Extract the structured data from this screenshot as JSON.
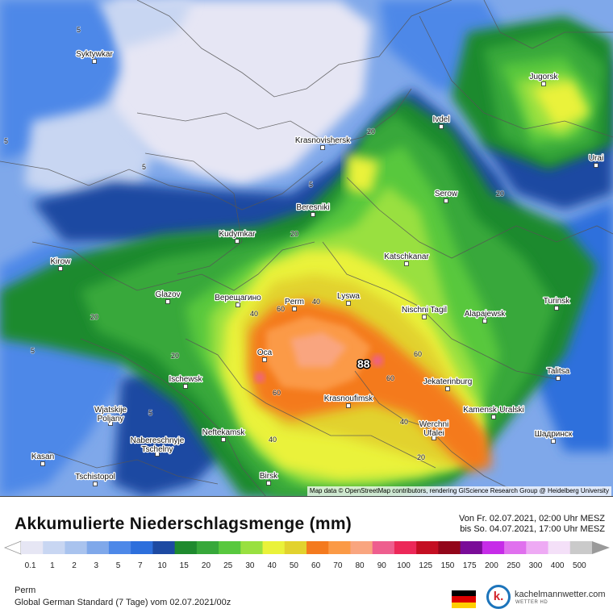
{
  "map": {
    "attribution": "Map data © OpenStreetMap contributors, rendering GIScience Research Group @ Heidelberg University",
    "max_value": "88",
    "cities": [
      {
        "name": "Syktywkar",
        "lon": 117,
        "lat": 76
      },
      {
        "name": "Jugorsk",
        "lon": 674,
        "lat": 104
      },
      {
        "name": "Ivdel",
        "lon": 547,
        "lat": 157
      },
      {
        "name": "Krasnovishersk",
        "lon": 400,
        "lat": 183
      },
      {
        "name": "Urai",
        "lon": 739,
        "lat": 205
      },
      {
        "name": "Serow",
        "lon": 553,
        "lat": 249
      },
      {
        "name": "Beresniki",
        "lon": 388,
        "lat": 266
      },
      {
        "name": "Kudymkar",
        "lon": 294,
        "lat": 299
      },
      {
        "name": "Katschkanar",
        "lon": 504,
        "lat": 327
      },
      {
        "name": "Kirow",
        "lon": 75,
        "lat": 333
      },
      {
        "name": "Glazov",
        "lon": 208,
        "lat": 374
      },
      {
        "name": "Верещагино",
        "lon": 295,
        "lat": 378
      },
      {
        "name": "Perm",
        "lon": 365,
        "lat": 383
      },
      {
        "name": "Lyswa",
        "lon": 432,
        "lat": 376
      },
      {
        "name": "Turinsk",
        "lon": 690,
        "lat": 382
      },
      {
        "name": "Nischni Tagil",
        "lon": 526,
        "lat": 393
      },
      {
        "name": "Alapajewsk",
        "lon": 601,
        "lat": 398
      },
      {
        "name": "Oca",
        "lon": 328,
        "lat": 446
      },
      {
        "name": "Talitsa",
        "lon": 692,
        "lat": 469
      },
      {
        "name": "Jekaterinburg",
        "lon": 555,
        "lat": 482
      },
      {
        "name": "Ischewsk",
        "lon": 230,
        "lat": 479
      },
      {
        "name": "Krasnoufimsk",
        "lon": 432,
        "lat": 503
      },
      {
        "name": "Kamensk-Uralski",
        "lon": 612,
        "lat": 517
      },
      {
        "name": "Wjatskije Poljany",
        "lon": 137,
        "lat": 525
      },
      {
        "name": "Neftekamsk",
        "lon": 277,
        "lat": 545
      },
      {
        "name": "Werchni Ufalei",
        "lon": 538,
        "lat": 543
      },
      {
        "name": "Шадринск",
        "lon": 686,
        "lat": 547
      },
      {
        "name": "Nabereschnyje Tschelny",
        "lon": 195,
        "lat": 563
      },
      {
        "name": "Kasan",
        "lon": 53,
        "lat": 575
      },
      {
        "name": "Birsk",
        "lon": 333,
        "lat": 599
      },
      {
        "name": "Tschistopol",
        "lon": 118,
        "lat": 600
      }
    ]
  },
  "legend": {
    "title": "Akkumulierte Niederschlagsmenge (mm)",
    "period_line1": "Von Fr. 02.07.2021, 02:00 Uhr MESZ",
    "period_line2": "bis So. 04.07.2021, 17:00 Uhr MESZ",
    "values": [
      "0.1",
      "1",
      "2",
      "3",
      "5",
      "7",
      "10",
      "15",
      "20",
      "25",
      "30",
      "40",
      "50",
      "60",
      "70",
      "80",
      "90",
      "100",
      "125",
      "150",
      "175",
      "200",
      "250",
      "300",
      "400",
      "500"
    ],
    "colors": [
      "#e6e6f4",
      "#c8d6f2",
      "#a9c3ee",
      "#7fa8ea",
      "#4d88e8",
      "#2d6fdc",
      "#1d4aa2",
      "#1f8a2e",
      "#37a83a",
      "#58c83e",
      "#99e040",
      "#eaf23a",
      "#e2d22e",
      "#f47a1e",
      "#fb9a46",
      "#f9a57f",
      "#ee5e8e",
      "#ec2858",
      "#c40e22",
      "#92061a",
      "#7a0c98",
      "#c62ce8",
      "#e070ee",
      "#eeaaf4",
      "#f4e0f8",
      "#cacaca"
    ]
  },
  "footer": {
    "location": "Perm",
    "model": "Global German Standard (7 Tage) vom 02.07.2021/00z",
    "brand": "kachelmannwetter.com",
    "brand_sub": "WETTER HD",
    "logo_letter": "k."
  }
}
